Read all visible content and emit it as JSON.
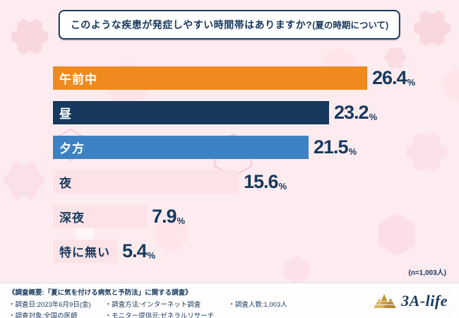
{
  "header": {
    "title_main": "このような疾患が発症しやすい時間帯はありますか?",
    "title_sub": "(夏の時期について)"
  },
  "chart_data": {
    "type": "bar",
    "orientation": "horizontal",
    "title": "このような疾患が発症しやすい時間帯はありますか?(夏の時期について)",
    "categories": [
      "午前中",
      "昼",
      "夕方",
      "夜",
      "深夜",
      "特に無い"
    ],
    "values": [
      26.4,
      23.2,
      21.5,
      15.6,
      7.9,
      5.4
    ],
    "unit": "%",
    "xlim": [
      0,
      30
    ],
    "legend": "none",
    "grid": "off",
    "bar_colors": [
      "#ee8a1e",
      "#17395e",
      "#3d83c4",
      "#fbe3e8",
      "#fbe3e8",
      "#fbe3e8"
    ],
    "label_colors": [
      "#ffffff",
      "#ffffff",
      "#ffffff",
      "#17395e",
      "#17395e",
      "#17395e"
    ],
    "value_color": "#17395e",
    "sample_note": "(n=1,003人)"
  },
  "footer": {
    "heading": "《調査概要:「夏に気を付ける病気と予防法」に関する調査》",
    "col1": [
      "・調査日:2023年6月9日(金)",
      "・調査対象:全国の医師"
    ],
    "col2": [
      "・調査方法:インターネット調査",
      "・モニター提供元:ゼネラルリサーチ"
    ],
    "col3": [
      "・調査人数:1,003人"
    ],
    "logo_text": "3A-life"
  },
  "colors": {
    "background": "#fdecef",
    "navy": "#17395e",
    "orange": "#ee8a1e",
    "blue": "#3d83c4",
    "light_pink_bar": "#fbe3e8",
    "logo_gold": "#c49a3c"
  }
}
